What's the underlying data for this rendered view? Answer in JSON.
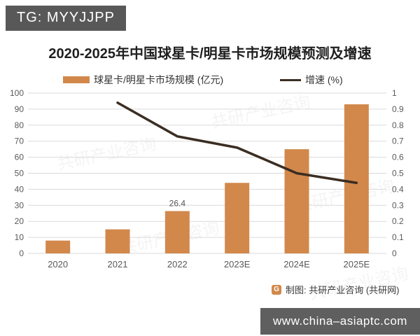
{
  "badge": {
    "label": "TG: MYYJJPP"
  },
  "title": "2020-2025年中国球星卡/明星卡市场规模预测及增速",
  "legend": [
    {
      "label": "球星卡/明星卡市场规模 (亿元)",
      "type": "bar",
      "color": "#D2884B"
    },
    {
      "label": "增速 (%)",
      "type": "line",
      "color": "#3B2D22"
    }
  ],
  "chart_data": {
    "type": "bar",
    "title": "2020-2025年中国球星卡/明星卡市场规模预测及增速",
    "categories": [
      "2020",
      "2021",
      "2022",
      "2023E",
      "2024E",
      "2025E"
    ],
    "series": [
      {
        "name": "球星卡/明星卡市场规模 (亿元)",
        "chart": "bar",
        "axis": "left",
        "color": "#D2884B",
        "values": [
          8,
          15,
          26.4,
          44,
          65,
          93
        ]
      },
      {
        "name": "增速 (%)",
        "chart": "line",
        "axis": "right",
        "color": "#3B2D22",
        "values": [
          null,
          0.94,
          0.73,
          0.66,
          0.5,
          0.44
        ]
      }
    ],
    "bar_labels": [
      {
        "category": "2022",
        "text": "26.4"
      }
    ],
    "left_axis": {
      "min": 0,
      "max": 100,
      "step": 10
    },
    "right_axis": {
      "min": 0,
      "max": 1,
      "step": 0.1
    },
    "grid": true,
    "legend_position": "top"
  },
  "watermark": {
    "text": "共研产业咨询"
  },
  "footer": {
    "label": "制图: 共研产业咨询 (共研网)",
    "logo_letter": "G"
  },
  "url_bar": {
    "label": "www.china–asiaptc.com"
  },
  "colors": {
    "bar": "#D2884B",
    "line": "#3B2D22",
    "grid": "#DADADA",
    "axis_text": "#595959",
    "badge_bg": "#585858",
    "url_bg": "#5F5F5F"
  }
}
